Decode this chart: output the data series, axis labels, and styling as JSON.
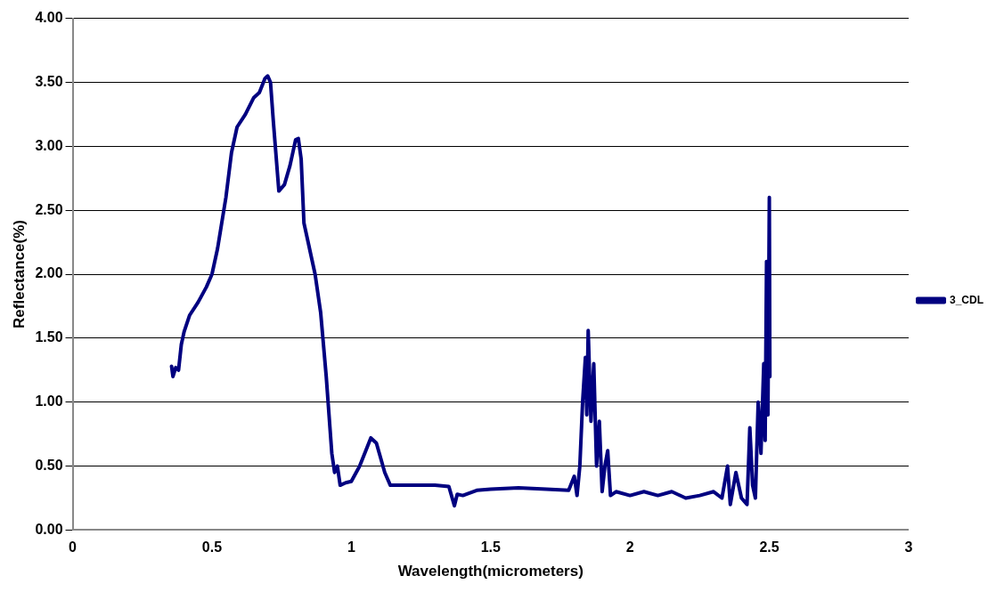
{
  "chart_data": {
    "type": "line",
    "xlabel": "Wavelength(micrometers)",
    "ylabel": "Reflectance(%)",
    "xlim": [
      0,
      3
    ],
    "xticks": [
      0,
      0.5,
      1,
      1.5,
      2,
      2.5,
      3
    ],
    "ylim": [
      0,
      4
    ],
    "yticks": [
      {
        "value": 0,
        "label": "0.00"
      },
      {
        "value": 0.5,
        "label": "0.50"
      },
      {
        "value": 1,
        "label": "1.00"
      },
      {
        "value": 1.5,
        "label": "1.50"
      },
      {
        "value": 2,
        "label": "2.00"
      },
      {
        "value": 2.5,
        "label": "2.50"
      },
      {
        "value": 3,
        "label": "3.00"
      },
      {
        "value": 3.5,
        "label": "3.50"
      },
      {
        "value": 4,
        "label": "4.00"
      }
    ],
    "grid": "y",
    "legend": "right",
    "marker": "none",
    "line_style": "solid",
    "series": [
      {
        "name": "3_CDL",
        "color": "#000080",
        "x": [
          0.355,
          0.36,
          0.37,
          0.38,
          0.39,
          0.4,
          0.42,
          0.45,
          0.48,
          0.5,
          0.52,
          0.55,
          0.57,
          0.59,
          0.62,
          0.65,
          0.67,
          0.69,
          0.7,
          0.71,
          0.72,
          0.74,
          0.76,
          0.78,
          0.8,
          0.81,
          0.82,
          0.83,
          0.85,
          0.87,
          0.89,
          0.91,
          0.93,
          0.94,
          0.95,
          0.96,
          0.98,
          1.0,
          1.03,
          1.07,
          1.09,
          1.12,
          1.14,
          1.2,
          1.3,
          1.35,
          1.37,
          1.38,
          1.4,
          1.45,
          1.5,
          1.6,
          1.7,
          1.78,
          1.8,
          1.81,
          1.82,
          1.83,
          1.84,
          1.845,
          1.85,
          1.86,
          1.87,
          1.88,
          1.89,
          1.9,
          1.91,
          1.92,
          1.93,
          1.95,
          2.0,
          2.05,
          2.1,
          2.15,
          2.2,
          2.25,
          2.3,
          2.33,
          2.35,
          2.36,
          2.38,
          2.4,
          2.42,
          2.43,
          2.44,
          2.45,
          2.46,
          2.47,
          2.48,
          2.485,
          2.49,
          2.495,
          2.5,
          2.502
        ],
        "values": [
          1.28,
          1.2,
          1.27,
          1.25,
          1.45,
          1.55,
          1.68,
          1.78,
          1.9,
          2.0,
          2.2,
          2.6,
          2.95,
          3.15,
          3.25,
          3.38,
          3.42,
          3.53,
          3.55,
          3.5,
          3.2,
          2.65,
          2.7,
          2.85,
          3.05,
          3.06,
          2.9,
          2.4,
          2.2,
          2.0,
          1.7,
          1.2,
          0.6,
          0.45,
          0.5,
          0.35,
          0.37,
          0.38,
          0.5,
          0.72,
          0.68,
          0.45,
          0.35,
          0.35,
          0.35,
          0.34,
          0.19,
          0.28,
          0.27,
          0.31,
          0.32,
          0.33,
          0.32,
          0.31,
          0.42,
          0.27,
          0.5,
          1.0,
          1.35,
          0.9,
          1.56,
          0.85,
          1.3,
          0.5,
          0.85,
          0.3,
          0.5,
          0.62,
          0.27,
          0.3,
          0.27,
          0.3,
          0.27,
          0.3,
          0.25,
          0.27,
          0.3,
          0.25,
          0.5,
          0.2,
          0.45,
          0.25,
          0.2,
          0.8,
          0.35,
          0.25,
          1.0,
          0.6,
          1.3,
          0.7,
          2.1,
          0.9,
          2.6,
          1.2
        ]
      }
    ]
  }
}
